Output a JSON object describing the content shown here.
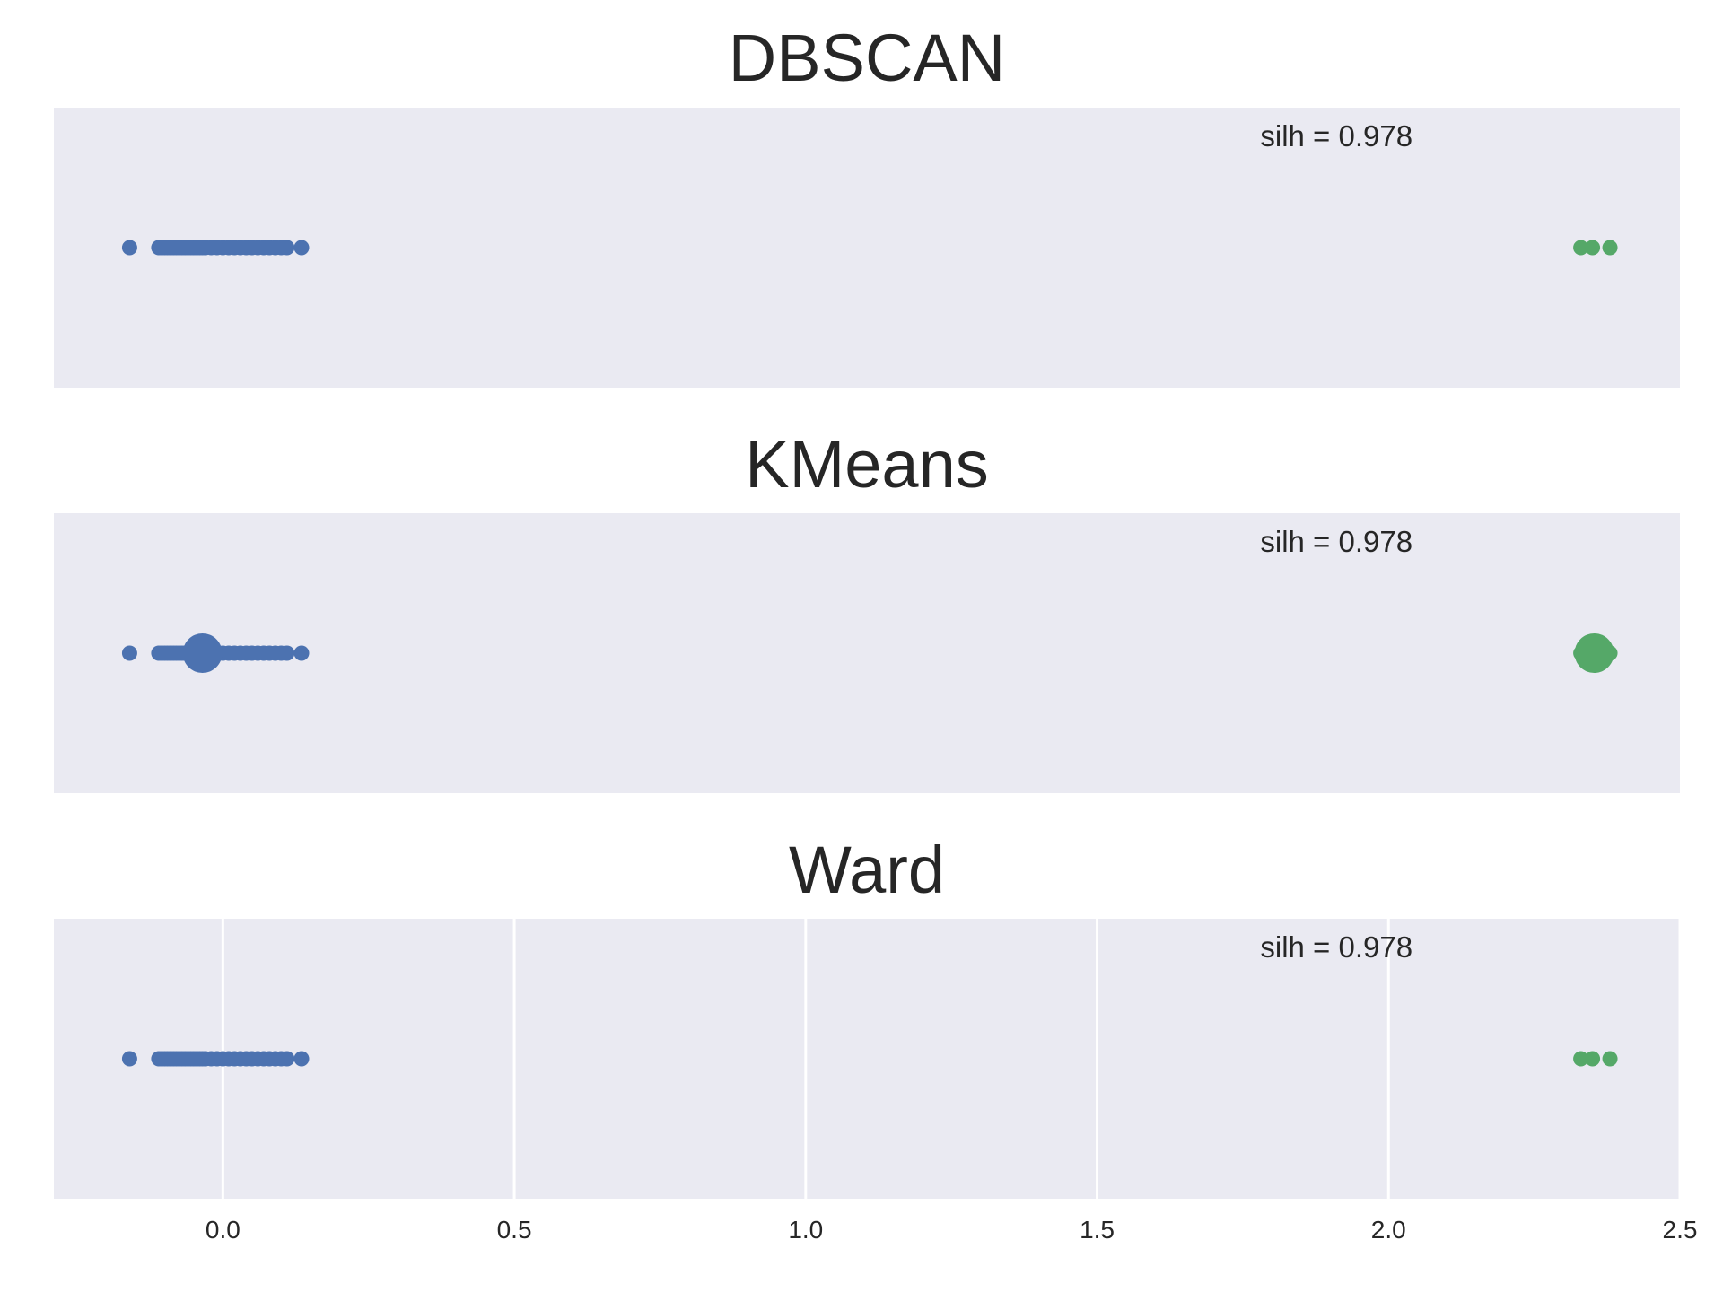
{
  "chart_data": [
    {
      "type": "scatter",
      "title": "DBSCAN",
      "annotation": "silh = 0.978",
      "xlim": [
        -0.29,
        2.5
      ],
      "ylim": [
        -1,
        1
      ],
      "grid": false,
      "xticks": [],
      "series": [
        {
          "color": "#4C72B0",
          "x": [
            -0.16,
            -0.11,
            -0.105,
            -0.1,
            -0.095,
            -0.09,
            -0.085,
            -0.08,
            -0.075,
            -0.07,
            -0.065,
            -0.06,
            -0.055,
            -0.05,
            -0.045,
            -0.04,
            -0.035,
            -0.03,
            -0.02,
            -0.01,
            0.0,
            0.01,
            0.02,
            0.03,
            0.04,
            0.05,
            0.06,
            0.07,
            0.08,
            0.09,
            0.1,
            0.11,
            0.135
          ],
          "y": [
            0,
            0,
            0,
            0,
            0,
            0,
            0,
            0,
            0,
            0,
            0,
            0,
            0,
            0,
            0,
            0,
            0,
            0,
            0,
            0,
            0,
            0,
            0,
            0,
            0,
            0,
            0,
            0,
            0,
            0,
            0,
            0,
            0
          ]
        },
        {
          "color": "#55A868",
          "x": [
            2.33,
            2.35,
            2.38
          ],
          "y": [
            0,
            0,
            0
          ]
        }
      ]
    },
    {
      "type": "scatter",
      "title": "KMeans",
      "annotation": "silh = 0.978",
      "xlim": [
        -0.29,
        2.5
      ],
      "ylim": [
        -1,
        1
      ],
      "grid": false,
      "xticks": [],
      "series": [
        {
          "color": "#4C72B0",
          "x": [
            -0.16,
            -0.11,
            -0.105,
            -0.1,
            -0.095,
            -0.09,
            -0.085,
            -0.08,
            -0.075,
            -0.07,
            -0.065,
            -0.06,
            -0.055,
            -0.05,
            -0.045,
            -0.04,
            -0.035,
            -0.03,
            -0.02,
            -0.01,
            0.0,
            0.01,
            0.02,
            0.03,
            0.04,
            0.05,
            0.06,
            0.07,
            0.08,
            0.09,
            0.1,
            0.11,
            0.135
          ],
          "y": [
            0,
            0,
            0,
            0,
            0,
            0,
            0,
            0,
            0,
            0,
            0,
            0,
            0,
            0,
            0,
            0,
            0,
            0,
            0,
            0,
            0,
            0,
            0,
            0,
            0,
            0,
            0,
            0,
            0,
            0,
            0,
            0,
            0
          ]
        },
        {
          "color": "#55A868",
          "x": [
            2.33,
            2.35,
            2.38
          ],
          "y": [
            0,
            0,
            0
          ]
        }
      ],
      "centers": [
        {
          "color": "#4C72B0",
          "x": -0.035,
          "y": 0
        },
        {
          "color": "#55A868",
          "x": 2.353,
          "y": 0
        }
      ]
    },
    {
      "type": "scatter",
      "title": "Ward",
      "annotation": "silh = 0.978",
      "xlim": [
        -0.29,
        2.5
      ],
      "ylim": [
        -1,
        1
      ],
      "grid": true,
      "xticks": [
        "0.0",
        "0.5",
        "1.0",
        "1.5",
        "2.0",
        "2.5"
      ],
      "xtick_values": [
        0.0,
        0.5,
        1.0,
        1.5,
        2.0,
        2.5
      ],
      "series": [
        {
          "color": "#4C72B0",
          "x": [
            -0.16,
            -0.11,
            -0.105,
            -0.1,
            -0.095,
            -0.09,
            -0.085,
            -0.08,
            -0.075,
            -0.07,
            -0.065,
            -0.06,
            -0.055,
            -0.05,
            -0.045,
            -0.04,
            -0.035,
            -0.03,
            -0.02,
            -0.01,
            0.0,
            0.01,
            0.02,
            0.03,
            0.04,
            0.05,
            0.06,
            0.07,
            0.08,
            0.09,
            0.1,
            0.11,
            0.135
          ],
          "y": [
            0,
            0,
            0,
            0,
            0,
            0,
            0,
            0,
            0,
            0,
            0,
            0,
            0,
            0,
            0,
            0,
            0,
            0,
            0,
            0,
            0,
            0,
            0,
            0,
            0,
            0,
            0,
            0,
            0,
            0,
            0,
            0,
            0
          ]
        },
        {
          "color": "#55A868",
          "x": [
            2.33,
            2.35,
            2.38
          ],
          "y": [
            0,
            0,
            0
          ]
        }
      ]
    }
  ],
  "colors": {
    "panel_background": "#EAEAF2",
    "grid": "#FFFFFF",
    "text": "#262626"
  }
}
